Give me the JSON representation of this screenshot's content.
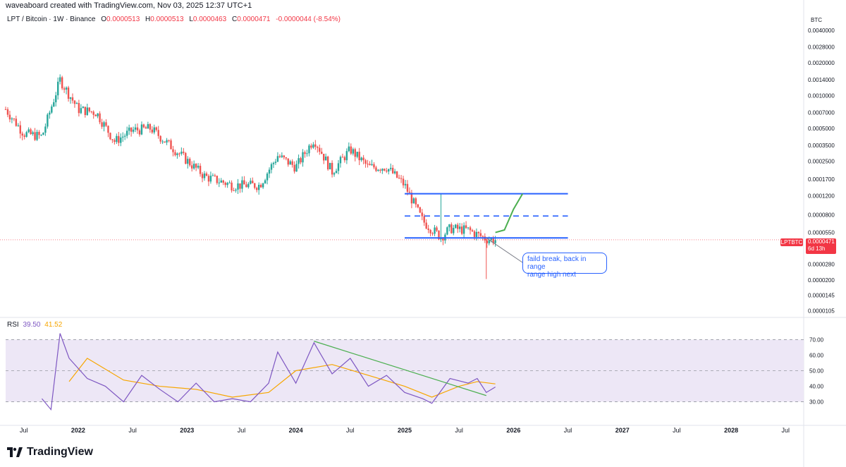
{
  "header": {
    "credit": "waveaboard created with TradingView.com, Nov 03, 2025 12:37 UTC+1",
    "symbol": "LPT / Bitcoin · 1W · Binance",
    "ohlc": [
      {
        "label": "O",
        "value": "0.0000513"
      },
      {
        "label": "H",
        "value": "0.0000513"
      },
      {
        "label": "L",
        "value": "0.0000463"
      },
      {
        "label": "C",
        "value": "0.0000471"
      }
    ],
    "change": "-0.0000044 (-8.54%)"
  },
  "price_axis": {
    "currency": "BTC",
    "ticks": [
      "0.0040000",
      "0.0028000",
      "0.0020000",
      "0.0014000",
      "0.0010000",
      "0.0007000",
      "0.0005000",
      "0.0003500",
      "0.0002500",
      "0.0001700",
      "0.0001200",
      "0.0000800",
      "0.0000550",
      "0.0000280",
      "0.0000200",
      "0.0000145",
      "0.0000105"
    ],
    "tick_values": [
      0.004,
      0.0028,
      0.002,
      0.0014,
      0.001,
      0.0007,
      0.0005,
      0.00035,
      0.00025,
      0.00017,
      0.00012,
      8e-05,
      5.5e-05,
      2.8e-05,
      2e-05,
      1.45e-05,
      1.05e-05
    ],
    "symbol_tag": "LPTBTC",
    "last_price": "0.0000471",
    "countdown": "6d 13h"
  },
  "rsi_pane": {
    "label": "RSI",
    "rsi_value": "39.50",
    "ma_value": "41.52",
    "ticks": [
      "70.00",
      "60.00",
      "50.00",
      "40.00",
      "30.00"
    ]
  },
  "time_axis": {
    "labels": [
      "Jul",
      "2022",
      "Jul",
      "2023",
      "Jul",
      "2024",
      "Jul",
      "2025",
      "Jul",
      "2026",
      "Jul",
      "2027",
      "Jul",
      "2028",
      "Jul"
    ]
  },
  "annotation": {
    "line1": "faild break, back in range",
    "line2": "range high next"
  },
  "branding": {
    "logo_text": "TradingView"
  },
  "colors": {
    "up": "#26a69a",
    "down": "#ef5350",
    "range_line": "#2962ff",
    "projection": "#4caf50",
    "rsi_line": "#7e57c2",
    "rsi_ma": "#f7a600",
    "rsi_band": "#ede7f6",
    "rsi_trendline": "#4caf50",
    "last_price": "#f23645"
  },
  "chart_data": [
    {
      "type": "candlestick",
      "title": "LPT / Bitcoin · 1W · Binance",
      "scale": "log",
      "ylim": [
        9.5e-06,
        0.0045
      ],
      "x_range": [
        "2021-05",
        "2028-09"
      ],
      "ohlc_approx": [
        {
          "date": "2021-05",
          "close": 0.00075
        },
        {
          "date": "2021-07",
          "close": 0.00045
        },
        {
          "date": "2021-09",
          "close": 0.00042
        },
        {
          "date": "2021-11",
          "close": 0.0014
        },
        {
          "date": "2022-01",
          "close": 0.00075
        },
        {
          "date": "2022-03",
          "close": 0.0007
        },
        {
          "date": "2022-05",
          "close": 0.00038
        },
        {
          "date": "2022-07",
          "close": 0.00048
        },
        {
          "date": "2022-09",
          "close": 0.0005
        },
        {
          "date": "2022-12",
          "close": 0.0003
        },
        {
          "date": "2023-03",
          "close": 0.00018
        },
        {
          "date": "2023-06",
          "close": 0.00015
        },
        {
          "date": "2023-09",
          "close": 0.00015
        },
        {
          "date": "2023-11",
          "close": 0.00028
        },
        {
          "date": "2024-01",
          "close": 0.00022
        },
        {
          "date": "2024-03",
          "close": 0.0004
        },
        {
          "date": "2024-05",
          "close": 0.0002
        },
        {
          "date": "2024-07",
          "close": 0.00032
        },
        {
          "date": "2024-09",
          "close": 0.00022
        },
        {
          "date": "2024-11",
          "close": 0.00022
        },
        {
          "date": "2025-01",
          "close": 0.00015
        },
        {
          "date": "2025-03",
          "close": 7e-05
        },
        {
          "date": "2025-05",
          "close": 5e-05
        },
        {
          "date": "2025-06",
          "close": 6e-05
        },
        {
          "date": "2025-08",
          "close": 5.8e-05
        },
        {
          "date": "2025-10",
          "close": 4.8e-05
        },
        {
          "date": "2025-11",
          "close": 4.71e-05
        }
      ],
      "notable_wicks": [
        {
          "date": "2025-05",
          "high": 0.000125
        },
        {
          "date": "2025-10",
          "low": 2.05e-05
        }
      ],
      "drawings": {
        "range_high": 0.000125,
        "range_mid": 7.8e-05,
        "range_low": 4.9e-05,
        "range_from": "2025-01",
        "range_to": "2026-07",
        "projection_path": [
          {
            "date": "2025-11",
            "value": 5.5e-05
          },
          {
            "date": "2025-12",
            "value": 5.8e-05
          },
          {
            "date": "2026-01",
            "value": 9e-05
          },
          {
            "date": "2026-02",
            "value": 0.000125
          }
        ]
      }
    },
    {
      "type": "line",
      "title": "RSI",
      "ylim": [
        23,
        77
      ],
      "bands": [
        30,
        50,
        70
      ],
      "series": [
        {
          "name": "RSI",
          "points": [
            {
              "date": "2021-09",
              "value": 32
            },
            {
              "date": "2021-10",
              "value": 25
            },
            {
              "date": "2021-11",
              "value": 74
            },
            {
              "date": "2021-12",
              "value": 58
            },
            {
              "date": "2022-02",
              "value": 45
            },
            {
              "date": "2022-04",
              "value": 40
            },
            {
              "date": "2022-06",
              "value": 30
            },
            {
              "date": "2022-08",
              "value": 47
            },
            {
              "date": "2022-10",
              "value": 38
            },
            {
              "date": "2022-12",
              "value": 30
            },
            {
              "date": "2023-02",
              "value": 42
            },
            {
              "date": "2023-04",
              "value": 30
            },
            {
              "date": "2023-06",
              "value": 32
            },
            {
              "date": "2023-08",
              "value": 30
            },
            {
              "date": "2023-10",
              "value": 42
            },
            {
              "date": "2023-11",
              "value": 62
            },
            {
              "date": "2024-01",
              "value": 42
            },
            {
              "date": "2024-03",
              "value": 68
            },
            {
              "date": "2024-05",
              "value": 48
            },
            {
              "date": "2024-07",
              "value": 58
            },
            {
              "date": "2024-09",
              "value": 40
            },
            {
              "date": "2024-11",
              "value": 47
            },
            {
              "date": "2025-01",
              "value": 36
            },
            {
              "date": "2025-03",
              "value": 32
            },
            {
              "date": "2025-04",
              "value": 29
            },
            {
              "date": "2025-06",
              "value": 45
            },
            {
              "date": "2025-08",
              "value": 42
            },
            {
              "date": "2025-09",
              "value": 45
            },
            {
              "date": "2025-10",
              "value": 36
            },
            {
              "date": "2025-11",
              "value": 39.5
            }
          ]
        },
        {
          "name": "RSI-based MA",
          "points": [
            {
              "date": "2021-12",
              "value": 43
            },
            {
              "date": "2022-02",
              "value": 58
            },
            {
              "date": "2022-06",
              "value": 44
            },
            {
              "date": "2022-10",
              "value": 40
            },
            {
              "date": "2023-02",
              "value": 38
            },
            {
              "date": "2023-06",
              "value": 33
            },
            {
              "date": "2023-10",
              "value": 36
            },
            {
              "date": "2024-01",
              "value": 50
            },
            {
              "date": "2024-05",
              "value": 54
            },
            {
              "date": "2024-09",
              "value": 47
            },
            {
              "date": "2025-01",
              "value": 40
            },
            {
              "date": "2025-04",
              "value": 33
            },
            {
              "date": "2025-07",
              "value": 40
            },
            {
              "date": "2025-09",
              "value": 43
            },
            {
              "date": "2025-11",
              "value": 41.52
            }
          ]
        }
      ],
      "trendline": [
        {
          "date": "2024-03",
          "value": 69
        },
        {
          "date": "2025-10",
          "value": 34
        }
      ]
    }
  ]
}
